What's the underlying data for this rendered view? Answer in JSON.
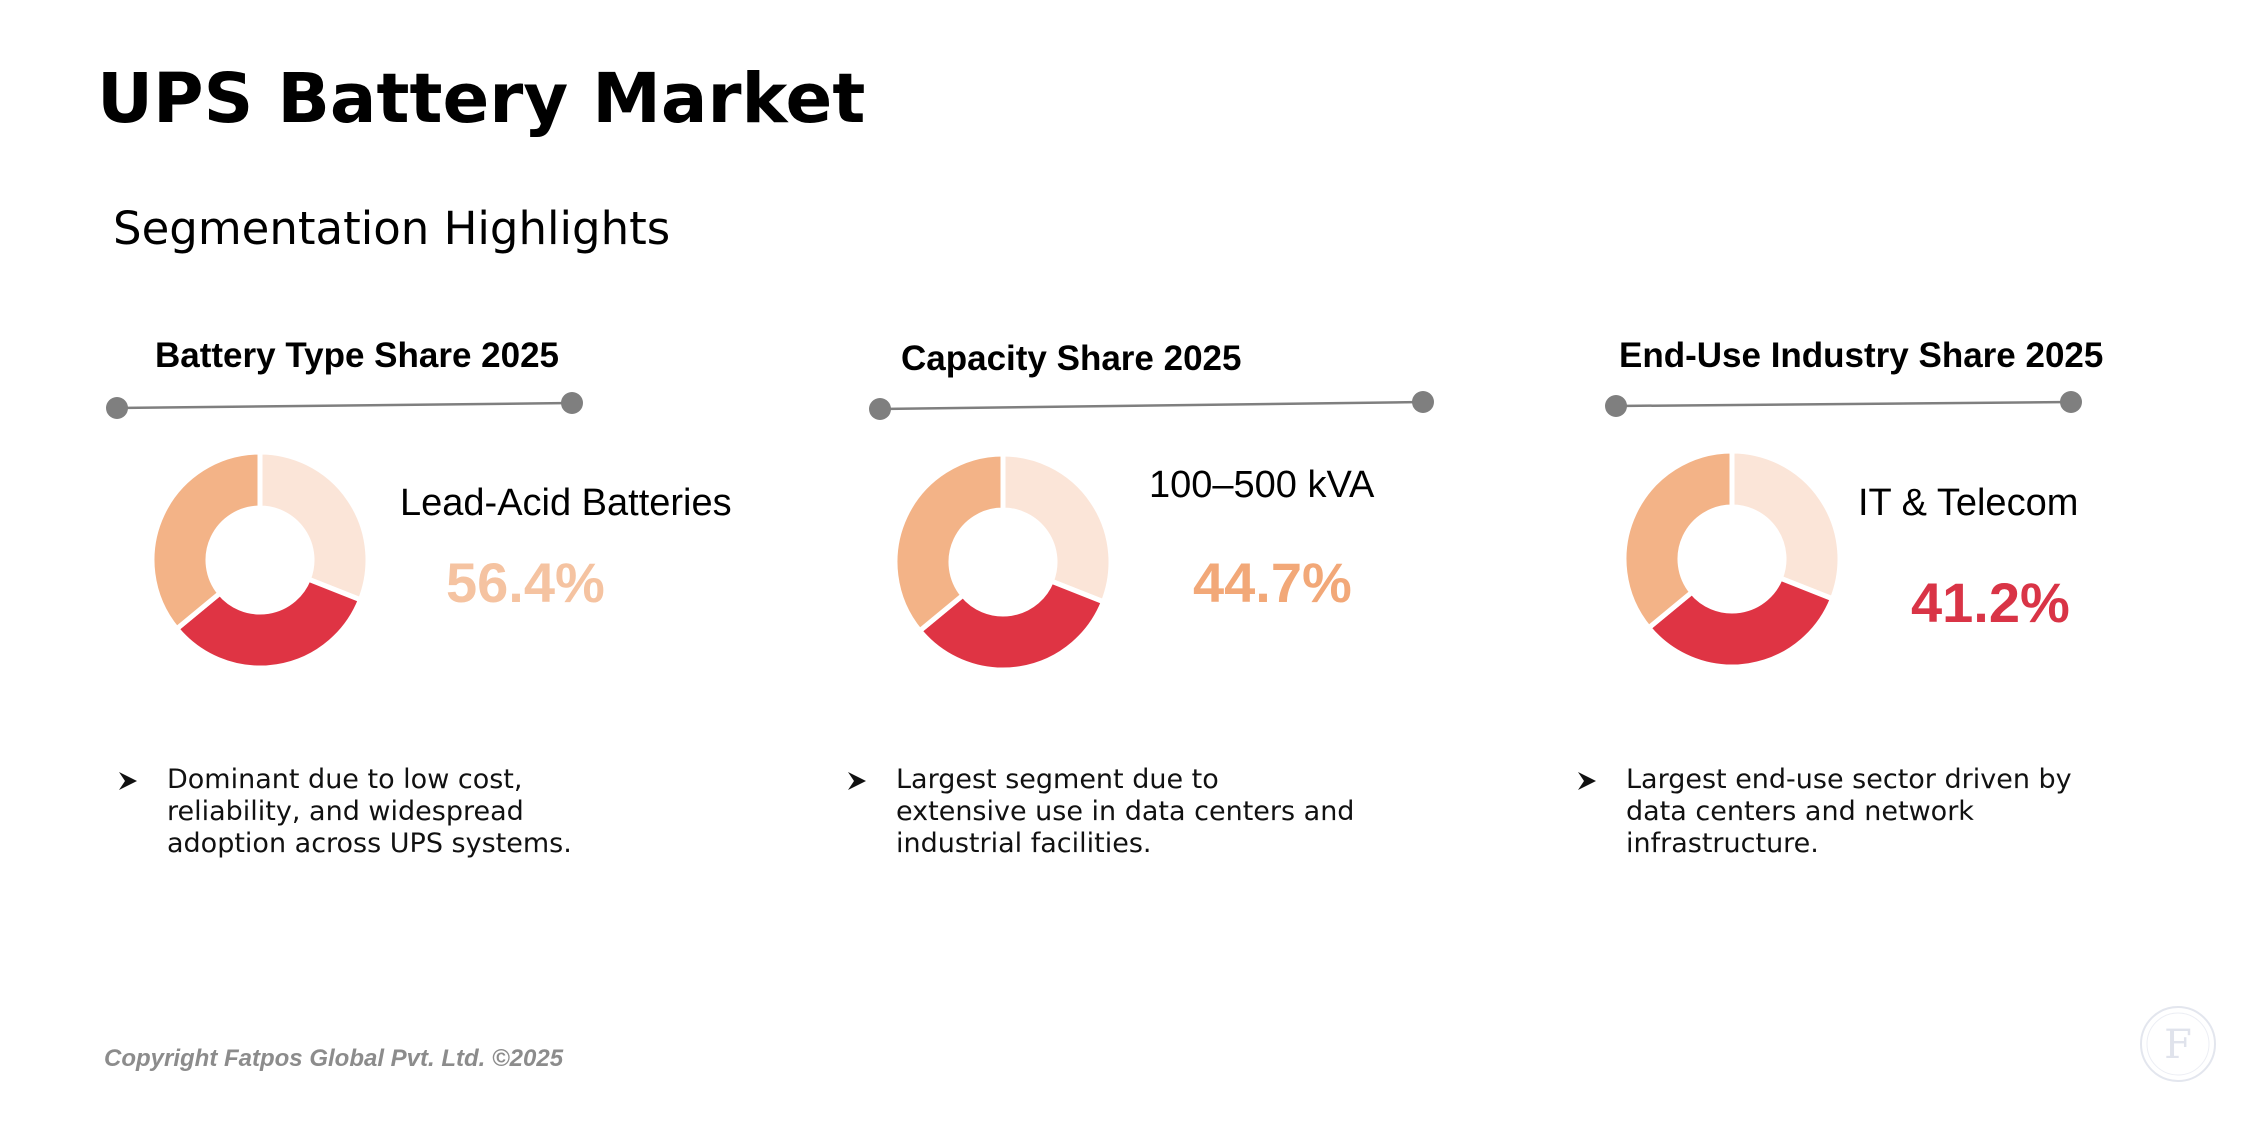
{
  "header": {
    "title": "UPS Battery Market",
    "subtitle": "Segmentation Highlights"
  },
  "colors": {
    "light_peach": "#fbe5d8",
    "red": "#df3444",
    "peach": "#f3b387",
    "rule": "#7f7f7f",
    "value_peach": "#f5c3a1",
    "value_orange": "#f2a878",
    "value_red": "#d93446"
  },
  "panels": [
    {
      "title": "Battery Type Share 2025",
      "segment_label": "Lead-Acid Batteries",
      "value_text": "56.4%",
      "value_color": "#f5c3a1",
      "bullet_text": "Dominant due to low cost, reliability, and widespread adoption across UPS systems."
    },
    {
      "title": "Capacity Share 2025",
      "segment_label": "100–500 kVA",
      "value_text": "44.7%",
      "value_color": "#f2a878",
      "bullet_text": "Largest segment due to extensive use in data centers and industrial facilities."
    },
    {
      "title": "End-Use Industry Share 2025",
      "segment_label": "IT & Telecom",
      "value_text": "41.2%",
      "value_color": "#d93446",
      "bullet_text": "Largest end-use sector driven by data centers and network infrastructure."
    }
  ],
  "chart_data": [
    {
      "type": "pie",
      "title": "Battery Type Share 2025",
      "donut": true,
      "slices": [
        {
          "color": "#fbe5d8",
          "value": 31
        },
        {
          "color": "#df3444",
          "value": 33
        },
        {
          "color": "#f3b387",
          "value": 36
        }
      ],
      "highlight": {
        "label": "Lead-Acid Batteries",
        "value": 56.4
      }
    },
    {
      "type": "pie",
      "title": "Capacity Share 2025",
      "donut": true,
      "slices": [
        {
          "color": "#fbe5d8",
          "value": 31
        },
        {
          "color": "#df3444",
          "value": 33
        },
        {
          "color": "#f3b387",
          "value": 36
        }
      ],
      "highlight": {
        "label": "100–500 kVA",
        "value": 44.7
      }
    },
    {
      "type": "pie",
      "title": "End-Use Industry Share 2025",
      "donut": true,
      "slices": [
        {
          "color": "#fbe5d8",
          "value": 31
        },
        {
          "color": "#df3444",
          "value": 33
        },
        {
          "color": "#f3b387",
          "value": 36
        }
      ],
      "highlight": {
        "label": "IT & Telecom",
        "value": 41.2
      }
    }
  ],
  "footer": {
    "copyright": "Copyright Fatpos Global Pvt. Ltd. ©2025",
    "logo_letter": "F",
    "logo_icon": "fatpos-logo-icon"
  }
}
